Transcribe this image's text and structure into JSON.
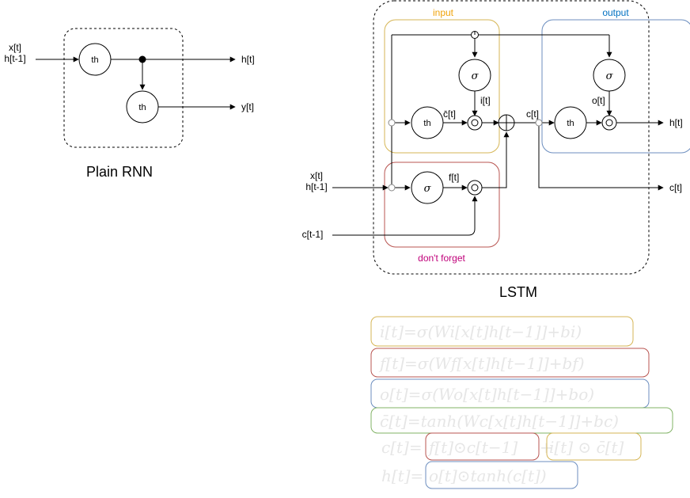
{
  "rnn": {
    "title": "Plain RNN",
    "input_x": "x[t]",
    "input_h": "h[t-1]",
    "node_top": "th",
    "node_bottom": "th",
    "out_h": "h[t]",
    "out_y": "y[t]"
  },
  "lstm": {
    "title": "LSTM",
    "input_x": "x[t]",
    "input_h": "h[t-1]",
    "input_c": "c[t-1]",
    "gate_input": "input",
    "gate_output": "output",
    "gate_forget": "don't forget",
    "node_th1": "th",
    "node_th2": "th",
    "node_sigma_i": "σ",
    "node_sigma_f": "σ",
    "node_sigma_o": "σ",
    "lbl_cbar": "c̄[t]",
    "lbl_i": "i[t]",
    "lbl_f": "f[t]",
    "lbl_o": "o[t]",
    "lbl_c": "c[t]",
    "out_h": "h[t]",
    "out_c": "c[t]",
    "colors": {
      "input": "#d6b656",
      "input_text": "#f0a30a",
      "output": "#6c8ebf",
      "output_text": "#0070c0",
      "forget": "#b85450",
      "forget_text": "#c0007a",
      "cbar": "#82b366"
    }
  },
  "equations": {
    "eq_i": "i[t]=σ(Wi[x[t]h[t−1]]+bi)",
    "eq_f": "f[t]=σ(Wf[x[t]h[t−1]]+bf)",
    "eq_o": "o[t]=σ(Wo[x[t]h[t−1]]+bo)",
    "eq_cbar": "c̄[t]=tanh(Wc[x[t]h[t−1]]+bc)",
    "eq_c_lhs": "c[t]=",
    "eq_c_f": "f[t]⊙c[t−1]",
    "eq_c_plus": "+",
    "eq_c_i": "i[t] ⊙ c̄[t]",
    "eq_h_lhs": "h[t]=",
    "eq_h_o": "o[t]⊙tanh(c[t])"
  }
}
